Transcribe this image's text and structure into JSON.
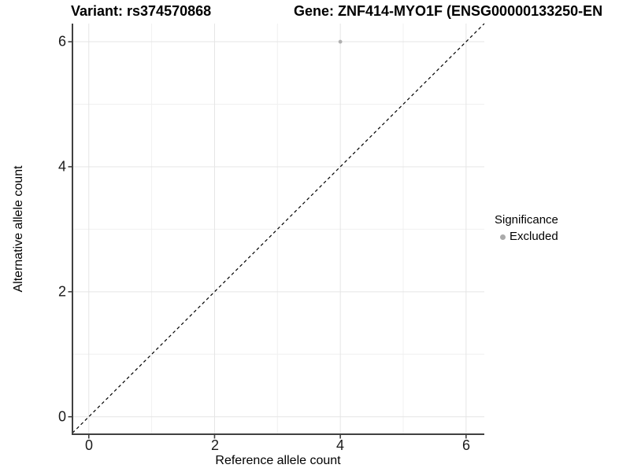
{
  "header": {
    "variant_title": "Variant: rs374570868",
    "gene_title": "Gene: ZNF414-MYO1F (ENSG00000133250-EN"
  },
  "chart_data": {
    "type": "scatter",
    "xlabel": "Reference allele count",
    "ylabel": "Alternative allele count",
    "x_tick_labels": [
      "0",
      "2",
      "4",
      "6"
    ],
    "y_tick_labels": [
      "0",
      "2",
      "4",
      "6"
    ],
    "x_major": [
      0,
      2,
      4,
      6
    ],
    "x_minor": [
      1,
      3,
      5
    ],
    "y_major": [
      0,
      2,
      4,
      6
    ],
    "y_minor": [
      1,
      3,
      5
    ],
    "xlim": [
      -0.26,
      6.29
    ],
    "ylim": [
      -0.28,
      6.29
    ],
    "points": [
      {
        "x": 4,
        "y": 6,
        "significance": "Excluded"
      }
    ],
    "identity_line": {
      "slope": 1,
      "intercept": 0,
      "style": "dashed",
      "color": "#000000"
    },
    "legend": {
      "title": "Significance",
      "position": "right",
      "items": [
        {
          "label": "Excluded",
          "color": "#aaaaaa"
        }
      ]
    },
    "grid": true,
    "colors": {
      "point": "#b0b0b0",
      "grid_major": "#e5e5e5",
      "grid_minor": "#f0f0f0",
      "axis": "#404040"
    }
  }
}
